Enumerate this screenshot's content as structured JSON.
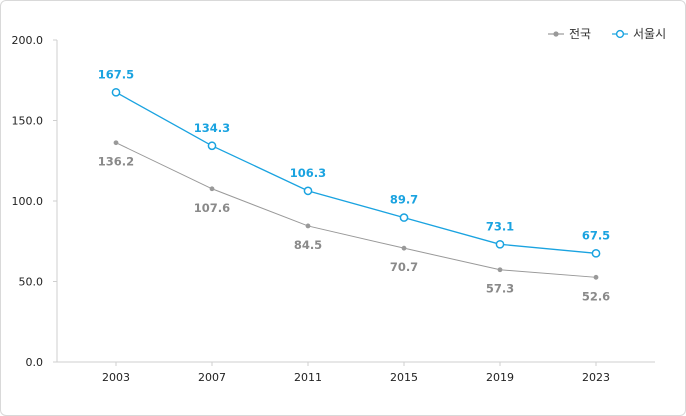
{
  "chart_data": {
    "type": "line",
    "title": "",
    "xlabel": "",
    "ylabel": "",
    "categories": [
      "2003",
      "2007",
      "2011",
      "2015",
      "2019",
      "2023"
    ],
    "y_ticks": [
      "0.0",
      "50.0",
      "100.0",
      "150.0",
      "200.0"
    ],
    "ylim": [
      0,
      200
    ],
    "legend_position": "top-right",
    "series": [
      {
        "name": "전국",
        "color": "#999999",
        "marker": "filled-circle",
        "values": [
          136.2,
          107.6,
          84.5,
          70.7,
          57.3,
          52.6
        ],
        "labels": [
          "136.2",
          "107.6",
          "84.5",
          "70.7",
          "57.3",
          "52.6"
        ],
        "label_placement": "below"
      },
      {
        "name": "서울시",
        "color": "#1aa3e0",
        "marker": "open-circle",
        "values": [
          167.5,
          134.3,
          106.3,
          89.7,
          73.1,
          67.5
        ],
        "labels": [
          "167.5",
          "134.3",
          "106.3",
          "89.7",
          "73.1",
          "67.5"
        ],
        "label_placement": "above"
      }
    ]
  }
}
